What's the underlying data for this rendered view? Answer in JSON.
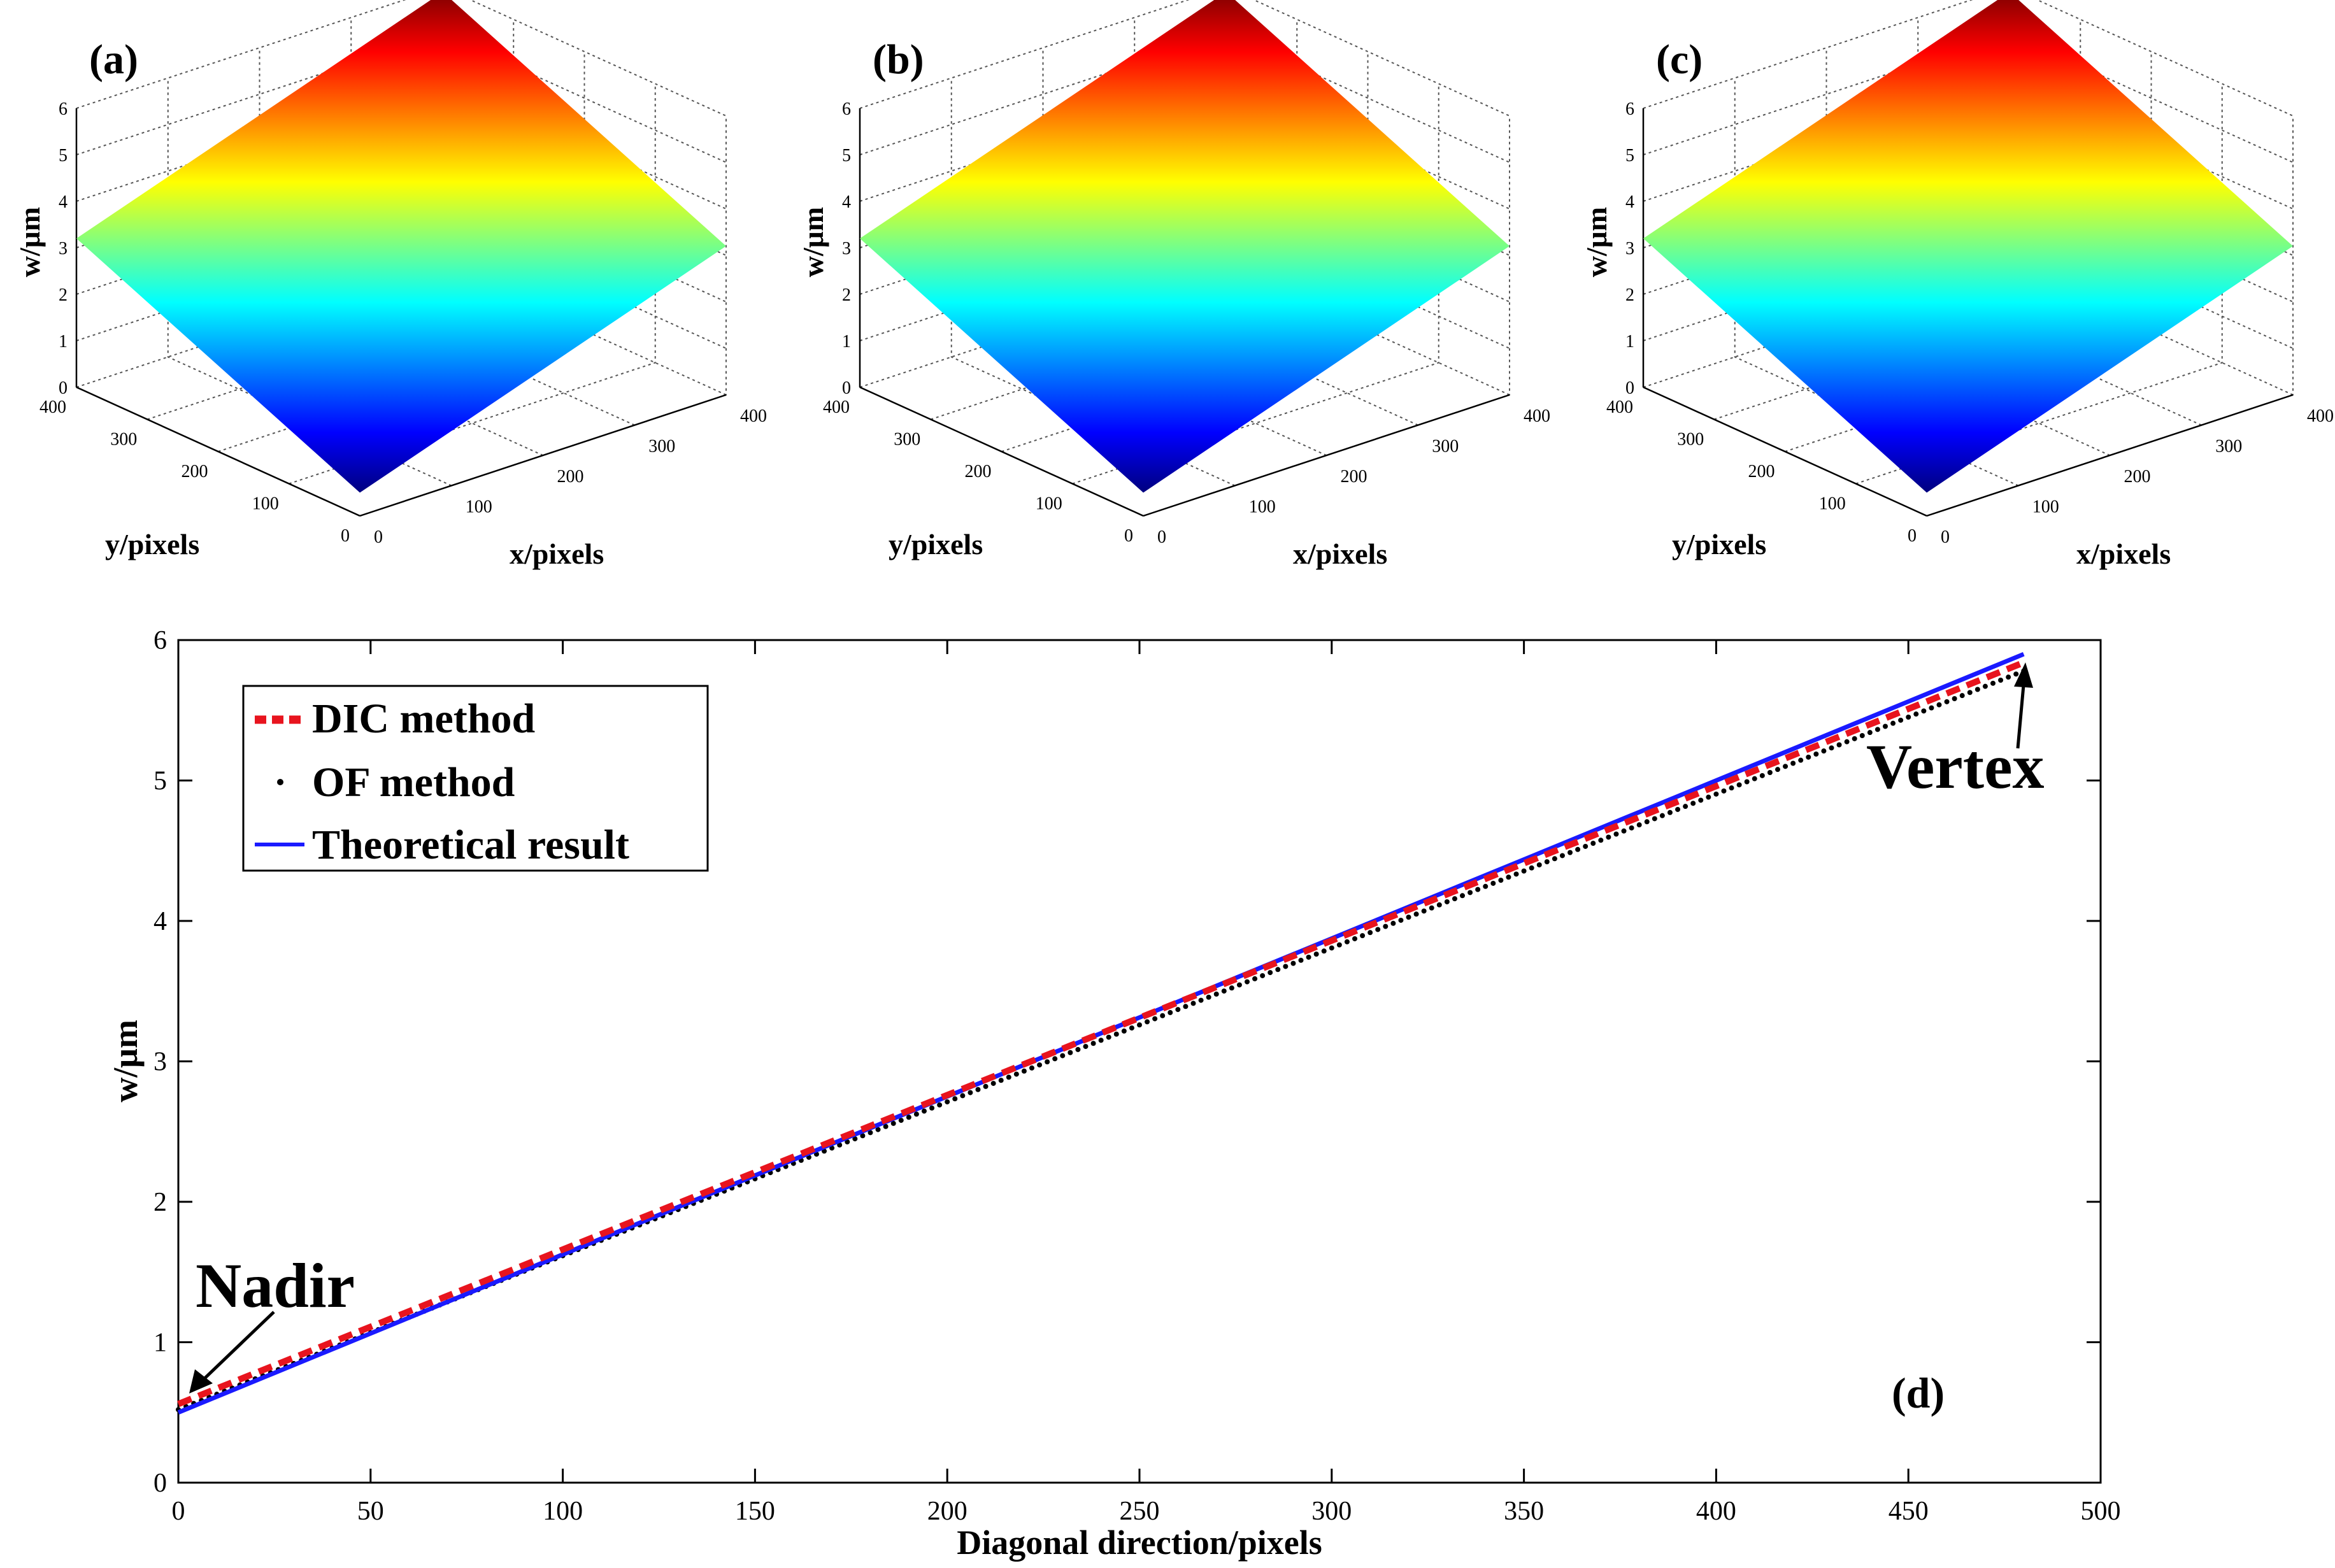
{
  "surfaces": [
    {
      "panel_label": "(a)",
      "zlabel": "w/μm",
      "xlabel": "x/pixels",
      "ylabel": "y/pixels",
      "z_ticks": [
        "0",
        "1",
        "2",
        "3",
        "4",
        "5",
        "6"
      ],
      "x_ticks": [
        "0",
        "100",
        "200",
        "300",
        "400"
      ],
      "y_ticks": [
        "0",
        "100",
        "200",
        "300",
        "400"
      ],
      "z_range": [
        0,
        6
      ],
      "z_corners": {
        "x0y0": 0.5,
        "x400y0": 3.2,
        "x0y400": 3.2,
        "x400y400": 5.9
      }
    },
    {
      "panel_label": "(b)",
      "zlabel": "w/μm",
      "xlabel": "x/pixels",
      "ylabel": "y/pixels",
      "z_ticks": [
        "0",
        "1",
        "2",
        "3",
        "4",
        "5",
        "6"
      ],
      "x_ticks": [
        "0",
        "100",
        "200",
        "300",
        "400"
      ],
      "y_ticks": [
        "0",
        "100",
        "200",
        "300",
        "400"
      ],
      "z_range": [
        0,
        6
      ],
      "z_corners": {
        "x0y0": 0.5,
        "x400y0": 3.2,
        "x0y400": 3.2,
        "x400y400": 5.9
      }
    },
    {
      "panel_label": "(c)",
      "zlabel": "w/μm",
      "xlabel": "x/pixels",
      "ylabel": "y/pixels",
      "z_ticks": [
        "0",
        "1",
        "2",
        "3",
        "4",
        "5",
        "6"
      ],
      "x_ticks": [
        "0",
        "100",
        "200",
        "300",
        "400"
      ],
      "y_ticks": [
        "0",
        "100",
        "200",
        "300",
        "400"
      ],
      "z_range": [
        0,
        6
      ],
      "z_corners": {
        "x0y0": 0.5,
        "x400y0": 3.2,
        "x0y400": 3.2,
        "x400y400": 5.9
      }
    }
  ],
  "chart_data": {
    "type": "line",
    "panel_label": "(d)",
    "xlabel": "Diagonal direction/pixels",
    "ylabel": "w/μm",
    "xlim": [
      0,
      500
    ],
    "ylim": [
      0,
      6
    ],
    "x_ticks": [
      "0",
      "50",
      "100",
      "150",
      "200",
      "250",
      "300",
      "350",
      "400",
      "450",
      "500"
    ],
    "y_ticks": [
      "0",
      "1",
      "2",
      "3",
      "4",
      "5",
      "6"
    ],
    "series": [
      {
        "name": "DIC method",
        "style": "dashed",
        "color": "#e8141e",
        "x": [
          0,
          480
        ],
        "y": [
          0.56,
          5.84
        ]
      },
      {
        "name": "OF method",
        "style": "dots",
        "color": "#000000",
        "x": [
          0,
          480
        ],
        "y": [
          0.52,
          5.78
        ]
      },
      {
        "name": "Theoretical result",
        "style": "solid",
        "color": "#1a1aff",
        "x": [
          0,
          480
        ],
        "y": [
          0.5,
          5.9
        ]
      }
    ],
    "legend": {
      "position": "top-left",
      "entries": [
        "DIC method",
        "OF method",
        "Theoretical result"
      ]
    },
    "annotations": [
      {
        "text": "Nadir",
        "point": [
          2,
          0.55
        ]
      },
      {
        "text": "Vertex",
        "point": [
          480,
          5.85
        ]
      }
    ]
  }
}
